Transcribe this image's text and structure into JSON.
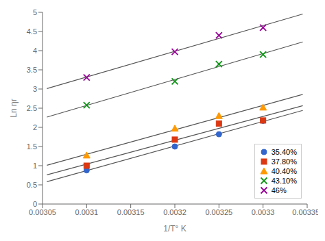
{
  "chart_data": {
    "type": "scatter",
    "xlabel": "1/T° K",
    "ylabel": "Ln ηr",
    "xlim": [
      0.00305,
      0.00335
    ],
    "ylim": [
      0,
      5
    ],
    "xticks": [
      0.00305,
      0.0031,
      0.00315,
      0.0032,
      0.00325,
      0.0033,
      0.00335
    ],
    "yticks": [
      0,
      0.5,
      1,
      1.5,
      2,
      2.5,
      3,
      3.5,
      4,
      4.5,
      5
    ],
    "grid": false,
    "legend": "lower right",
    "series": [
      {
        "name": "35.40%",
        "marker": "circle",
        "color": "#3366cc",
        "x": [
          0.0031,
          0.0032,
          0.00325,
          0.0033
        ],
        "values": [
          0.88,
          1.5,
          1.82,
          2.17
        ],
        "trend_line": {
          "x": [
            0.003055,
            0.003345
          ],
          "values": [
            0.5818,
            2.4428
          ],
          "color": "#555555"
        }
      },
      {
        "name": "37.80%",
        "marker": "square",
        "color": "#dc3912",
        "x": [
          0.0031,
          0.0032,
          0.00325,
          0.0033
        ],
        "values": [
          1.0,
          1.68,
          2.1,
          2.18
        ],
        "trend_line": {
          "x": [
            0.003055,
            0.003345
          ],
          "values": [
            0.7608,
            2.5638
          ],
          "color": "#555555"
        }
      },
      {
        "name": "40.40%",
        "marker": "triangle",
        "color": "#ff9900",
        "x": [
          0.0031,
          0.0032,
          0.00325,
          0.0033
        ],
        "values": [
          1.27,
          1.97,
          2.3,
          2.52
        ],
        "trend_line": {
          "x": [
            0.003055,
            0.003345
          ],
          "values": [
            1.0124,
            2.8585
          ],
          "color": "#555555"
        }
      },
      {
        "name": "43.10%",
        "marker": "x",
        "color": "#109618",
        "x": [
          0.0031,
          0.0032,
          0.00325,
          0.0033
        ],
        "values": [
          2.58,
          3.2,
          3.65,
          3.9
        ],
        "trend_line": {
          "x": [
            0.003055,
            0.003345
          ],
          "values": [
            2.2678,
            4.2282
          ],
          "color": "#555555"
        }
      },
      {
        "name": "46%",
        "marker": "x",
        "color": "#990099",
        "x": [
          0.0031,
          0.0032,
          0.00325,
          0.0033
        ],
        "values": [
          3.3,
          3.97,
          4.4,
          4.6
        ],
        "trend_line": {
          "x": [
            0.003055,
            0.003345
          ],
          "values": [
            3.0118,
            4.9556
          ],
          "color": "#555555"
        }
      }
    ]
  }
}
